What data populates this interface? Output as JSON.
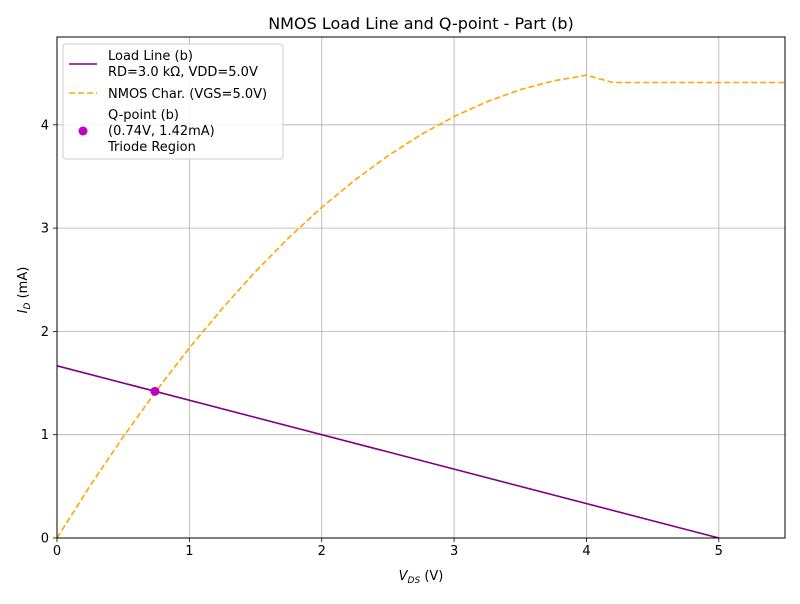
{
  "chart_data": {
    "type": "line",
    "title": "NMOS Load Line and Q-point - Part (b)",
    "xlabel": {
      "main": "V",
      "sub": "DS",
      "unit": " (V)"
    },
    "ylabel": {
      "main": "I",
      "sub": "D",
      "unit": " (mA)"
    },
    "xlim": [
      0,
      5.5
    ],
    "ylim": [
      0,
      4.85
    ],
    "xticks": [
      0,
      1,
      2,
      3,
      4,
      5
    ],
    "yticks": [
      0,
      1,
      2,
      3,
      4
    ],
    "grid": true,
    "legend_position": "top-left",
    "series": [
      {
        "name": "Load Line (b)",
        "name_line2": "RD=3.0 kΩ, VDD=5.0V",
        "style": "solid",
        "color": "#800080",
        "x": [
          0,
          5
        ],
        "y": [
          1.6667,
          0
        ]
      },
      {
        "name": "NMOS Char. (VGS=5.0V)",
        "style": "dashed",
        "color": "#ffa500",
        "x": [
          0,
          0.25,
          0.5,
          0.75,
          1.0,
          1.25,
          1.5,
          1.75,
          2.0,
          2.25,
          2.5,
          2.75,
          3.0,
          3.25,
          3.5,
          3.75,
          4.0,
          4.2,
          4.5,
          5.0,
          5.5
        ],
        "y": [
          0,
          0.505,
          0.98,
          1.425,
          1.84,
          2.225,
          2.58,
          2.905,
          3.2,
          3.465,
          3.7,
          3.905,
          4.08,
          4.225,
          4.34,
          4.425,
          4.48,
          4.41,
          4.41,
          4.41,
          4.41
        ]
      }
    ],
    "points": [
      {
        "name": "Q-point (b)",
        "name_line2": "(0.74V, 1.42mA)",
        "name_line3": "Triode Region",
        "color": "#bf00bf",
        "x": 0.74,
        "y": 1.42
      }
    ]
  }
}
